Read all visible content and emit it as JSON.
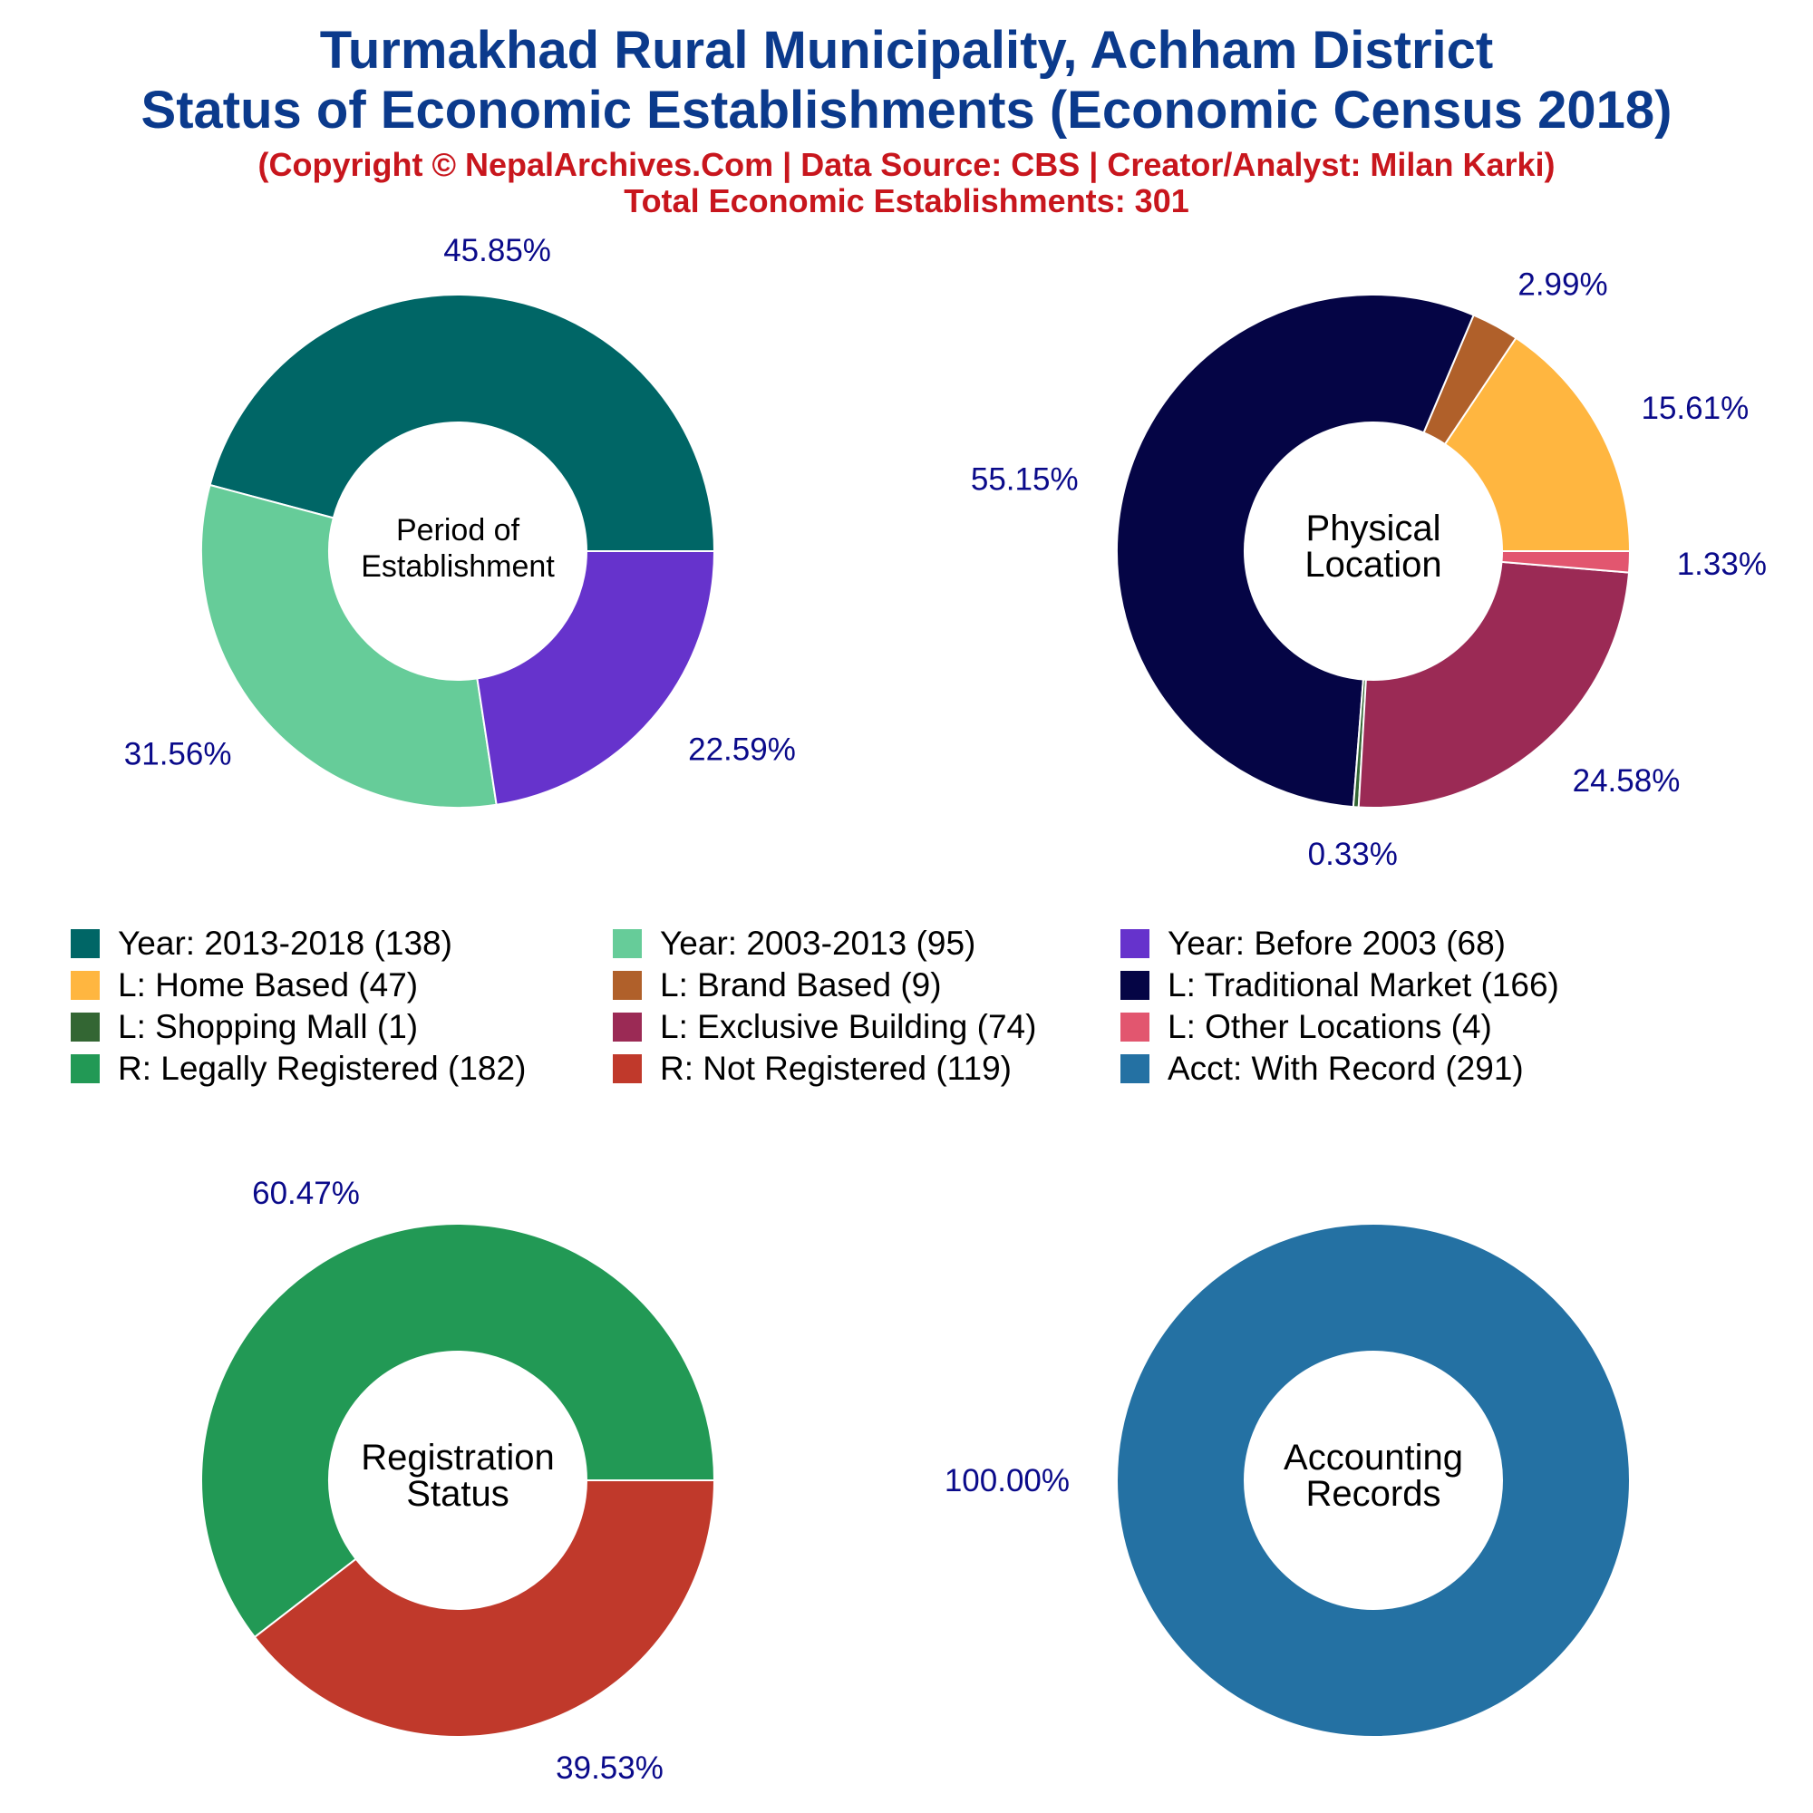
{
  "title_line1": "Turmakhad Rural Municipality, Achham District",
  "title_line2": "Status of Economic Establishments (Economic Census 2018)",
  "subtitle_line1": "(Copyright © NepalArchives.Com | Data Source: CBS | Creator/Analyst: Milan Karki)",
  "subtitle_line2": "Total Economic Establishments: 301",
  "legend": [
    {
      "label": "Year: 2013-2018 (138)",
      "color": "#006666"
    },
    {
      "label": "Year: 2003-2013 (95)",
      "color": "#66cc99"
    },
    {
      "label": "Year: Before 2003 (68)",
      "color": "#6633cc"
    },
    {
      "label": "L: Home Based (47)",
      "color": "#ffb640"
    },
    {
      "label": "L: Brand Based (9)",
      "color": "#b0602a"
    },
    {
      "label": "L: Traditional Market (166)",
      "color": "#050545"
    },
    {
      "label": "L: Shopping Mall (1)",
      "color": "#336633"
    },
    {
      "label": "L: Exclusive Building (74)",
      "color": "#9b2a55"
    },
    {
      "label": "L: Other Locations (4)",
      "color": "#e2566f"
    },
    {
      "label": "R: Legally Registered (182)",
      "color": "#229955"
    },
    {
      "label": "R: Not Registered (119)",
      "color": "#c0392b"
    },
    {
      "label": "Acct: With Record (291)",
      "color": "#2471a3"
    }
  ],
  "chart_data": [
    {
      "type": "pie",
      "center_label": [
        "Period of",
        "Establishment"
      ],
      "categories": [
        "Year: 2013-2018",
        "Year: 2003-2013",
        "Year: Before 2003"
      ],
      "values": [
        138,
        95,
        68
      ],
      "labels": [
        "45.85%",
        "31.56%",
        "22.59%"
      ],
      "colors": [
        "#006666",
        "#66cc99",
        "#6633cc"
      ],
      "direction": "counterclockwise",
      "start": "east"
    },
    {
      "type": "pie",
      "center_label": [
        "Physical",
        "Location"
      ],
      "categories": [
        "L: Home Based",
        "L: Brand Based",
        "L: Traditional Market",
        "L: Shopping Mall",
        "L: Exclusive Building",
        "L: Other Locations"
      ],
      "values": [
        47,
        9,
        166,
        1,
        74,
        4
      ],
      "labels": [
        "15.61%",
        "2.99%",
        "55.15%",
        "0.33%",
        "24.58%",
        "1.33%"
      ],
      "colors": [
        "#ffb640",
        "#b0602a",
        "#050545",
        "#336633",
        "#9b2a55",
        "#e2566f"
      ],
      "direction": "counterclockwise",
      "start": "east"
    },
    {
      "type": "pie",
      "center_label": [
        "Registration",
        "Status"
      ],
      "categories": [
        "R: Legally Registered",
        "R: Not Registered"
      ],
      "values": [
        182,
        119
      ],
      "labels": [
        "60.47%",
        "39.53%"
      ],
      "colors": [
        "#229955",
        "#c0392b"
      ],
      "direction": "counterclockwise",
      "start": "east"
    },
    {
      "type": "pie",
      "center_label": [
        "Accounting",
        "Records"
      ],
      "categories": [
        "Acct: With Record"
      ],
      "values": [
        291
      ],
      "labels": [
        "100.00%"
      ],
      "colors": [
        "#2471a3"
      ],
      "direction": "counterclockwise",
      "start": "east"
    }
  ]
}
